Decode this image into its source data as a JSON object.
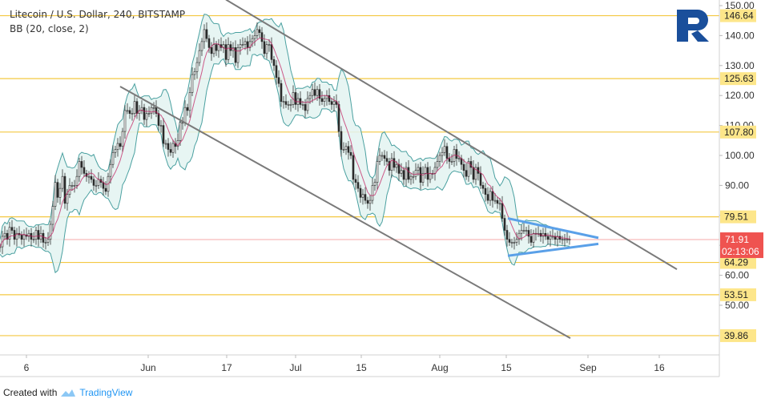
{
  "header": {
    "title": "Litecoin / U.S. Dollar, 240, BITSTAMP",
    "indicator": "BB (20, close, 2)"
  },
  "footer": {
    "created_with": "Created with",
    "brand": "TradingView"
  },
  "colors": {
    "level_line": "#f4c842",
    "level_label_bg": "#fde68a",
    "current_price_bg": "#ef5350",
    "band_fill": "#e3f3f1",
    "band_line": "#4aa0a0",
    "candle_up": "#2b2b2b",
    "candle_down": "#2b2b2b",
    "channel": "#7a7a7a",
    "triangle": "#5aa0e8",
    "ma_line": "#c2185b",
    "logo": "#1a4f9b"
  },
  "chart_data": {
    "type": "candlestick",
    "title": "Litecoin / U.S. Dollar, 240, BITSTAMP",
    "indicator": "BB (20, close, 2)",
    "y_axis": {
      "range": [
        35,
        153
      ],
      "ticks": [
        50,
        60,
        70,
        80,
        90,
        100,
        110,
        120,
        130,
        140,
        150
      ],
      "tick_labels": [
        "50.00",
        "60.00",
        "70.00",
        "80.00",
        "90.00",
        "100.00",
        "110.00",
        "120.00",
        "130.00",
        "140.00",
        "150.00"
      ]
    },
    "x_axis": {
      "ticks": [
        "6",
        "Jun",
        "17",
        "Jul",
        "15",
        "Aug",
        "15",
        "Sep",
        "16"
      ]
    },
    "levels": [
      146.64,
      125.63,
      107.8,
      79.51,
      64.29,
      53.51,
      39.86
    ],
    "level_labels": [
      "146.64",
      "125.63",
      "107.80",
      "79.51",
      "64.29",
      "53.51",
      "39.86"
    ],
    "current_price": "71.91",
    "countdown": "02:13:06",
    "closes": [
      [
        0,
        69.5
      ],
      [
        3,
        73
      ],
      [
        6,
        74
      ],
      [
        9,
        72
      ],
      [
        12,
        76
      ],
      [
        15,
        75
      ],
      [
        18,
        72
      ],
      [
        21,
        74
      ],
      [
        24,
        73.5
      ],
      [
        27,
        72
      ],
      [
        30,
        73.5
      ],
      [
        33,
        73
      ],
      [
        36,
        74
      ],
      [
        39,
        72
      ],
      [
        42,
        72
      ],
      [
        45,
        75
      ],
      [
        48,
        72
      ],
      [
        51,
        74
      ],
      [
        54,
        71
      ],
      [
        57,
        71
      ],
      [
        60,
        72
      ],
      [
        63,
        77
      ],
      [
        66,
        83
      ],
      [
        69,
        91
      ],
      [
        72,
        86
      ],
      [
        75,
        89
      ],
      [
        78,
        93
      ],
      [
        81,
        84
      ],
      [
        84,
        87
      ],
      [
        87,
        90
      ],
      [
        90,
        90
      ],
      [
        93,
        90
      ],
      [
        96,
        93
      ],
      [
        99,
        98
      ],
      [
        102,
        96
      ],
      [
        105,
        94
      ],
      [
        108,
        93
      ],
      [
        111,
        93
      ],
      [
        114,
        92
      ],
      [
        117,
        90
      ],
      [
        120,
        90
      ],
      [
        123,
        92
      ],
      [
        126,
        91
      ],
      [
        129,
        89
      ],
      [
        132,
        88
      ],
      [
        135,
        93
      ],
      [
        138,
        97
      ],
      [
        141,
        101
      ],
      [
        144,
        102
      ],
      [
        147,
        104
      ],
      [
        150,
        103
      ],
      [
        153,
        108
      ],
      [
        156,
        115
      ],
      [
        159,
        115
      ],
      [
        162,
        114
      ],
      [
        165,
        114
      ],
      [
        168,
        118
      ],
      [
        171,
        114
      ],
      [
        174,
        115
      ],
      [
        177,
        116
      ],
      [
        180,
        112
      ],
      [
        183,
        114
      ],
      [
        186,
        114
      ],
      [
        189,
        116
      ],
      [
        192,
        116
      ],
      [
        195,
        114
      ],
      [
        198,
        110
      ],
      [
        201,
        110
      ],
      [
        204,
        104
      ],
      [
        207,
        104
      ],
      [
        210,
        102
      ],
      [
        213,
        101
      ],
      [
        216,
        104
      ],
      [
        219,
        103
      ],
      [
        222,
        105
      ],
      [
        225,
        111
      ],
      [
        228,
        111
      ],
      [
        231,
        116
      ],
      [
        234,
        115
      ],
      [
        237,
        121
      ],
      [
        240,
        127
      ],
      [
        243,
        128
      ],
      [
        246,
        131
      ],
      [
        249,
        135
      ],
      [
        252,
        138
      ],
      [
        255,
        142
      ],
      [
        258,
        139
      ],
      [
        261,
        136
      ],
      [
        264,
        134
      ],
      [
        267,
        137
      ],
      [
        270,
        135
      ],
      [
        273,
        137
      ],
      [
        276,
        136
      ],
      [
        279,
        137
      ],
      [
        282,
        132
      ],
      [
        285,
        137
      ],
      [
        288,
        135
      ],
      [
        291,
        136
      ],
      [
        294,
        131
      ],
      [
        297,
        136
      ],
      [
        300,
        137
      ],
      [
        303,
        137
      ],
      [
        306,
        138
      ],
      [
        309,
        136
      ],
      [
        312,
        138
      ],
      [
        315,
        139
      ],
      [
        318,
        140
      ],
      [
        321,
        142
      ],
      [
        324,
        141
      ],
      [
        327,
        138
      ],
      [
        330,
        134
      ],
      [
        333,
        137
      ],
      [
        336,
        137
      ],
      [
        339,
        132
      ],
      [
        342,
        130
      ],
      [
        345,
        126
      ],
      [
        348,
        124
      ],
      [
        351,
        118
      ],
      [
        354,
        118
      ],
      [
        357,
        117
      ],
      [
        360,
        117
      ],
      [
        363,
        117
      ],
      [
        366,
        121
      ],
      [
        369,
        117
      ],
      [
        372,
        119
      ],
      [
        375,
        117
      ],
      [
        378,
        117
      ],
      [
        381,
        115
      ],
      [
        384,
        119
      ],
      [
        387,
        120
      ],
      [
        390,
        122
      ],
      [
        393,
        120
      ],
      [
        396,
        122
      ],
      [
        399,
        119
      ],
      [
        402,
        118
      ],
      [
        405,
        119
      ],
      [
        408,
        120
      ],
      [
        411,
        118
      ],
      [
        414,
        117
      ],
      [
        417,
        118
      ],
      [
        420,
        117
      ],
      [
        423,
        108
      ],
      [
        426,
        102
      ],
      [
        429,
        102
      ],
      [
        432,
        103
      ],
      [
        435,
        101
      ],
      [
        438,
        100
      ],
      [
        441,
        92
      ],
      [
        444,
        91
      ],
      [
        447,
        89
      ],
      [
        450,
        86
      ],
      [
        453,
        87
      ],
      [
        456,
        85
      ],
      [
        459,
        84
      ],
      [
        462,
        85
      ],
      [
        465,
        90
      ],
      [
        468,
        91
      ],
      [
        471,
        98
      ],
      [
        474,
        100
      ],
      [
        477,
        100
      ],
      [
        480,
        99
      ],
      [
        483,
        98
      ],
      [
        486,
        95
      ],
      [
        489,
        99
      ],
      [
        492,
        96
      ],
      [
        495,
        97
      ],
      [
        498,
        94
      ],
      [
        501,
        95
      ],
      [
        504,
        92
      ],
      [
        507,
        96
      ],
      [
        510,
        92
      ],
      [
        513,
        93
      ],
      [
        516,
        93
      ],
      [
        519,
        95
      ],
      [
        522,
        96
      ],
      [
        525,
        91
      ],
      [
        528,
        94
      ],
      [
        531,
        96
      ],
      [
        534,
        92
      ],
      [
        537,
        94
      ],
      [
        540,
        94
      ],
      [
        543,
        96
      ],
      [
        546,
        98
      ],
      [
        549,
        100
      ],
      [
        552,
        101
      ],
      [
        555,
        103
      ],
      [
        558,
        99
      ],
      [
        561,
        98
      ],
      [
        564,
        98
      ],
      [
        567,
        102
      ],
      [
        570,
        99
      ],
      [
        573,
        99
      ],
      [
        576,
        97
      ],
      [
        579,
        95
      ],
      [
        582,
        93
      ],
      [
        585,
        98
      ],
      [
        588,
        96
      ],
      [
        591,
        92
      ],
      [
        594,
        96
      ],
      [
        597,
        94
      ],
      [
        600,
        90
      ],
      [
        603,
        89
      ],
      [
        606,
        87
      ],
      [
        609,
        85
      ],
      [
        612,
        88
      ],
      [
        615,
        85
      ],
      [
        618,
        85
      ],
      [
        621,
        84
      ],
      [
        624,
        84
      ],
      [
        627,
        79
      ],
      [
        630,
        75
      ],
      [
        633,
        72
      ],
      [
        636,
        71
      ],
      [
        639,
        71
      ],
      [
        642,
        71
      ],
      [
        645,
        72
      ],
      [
        648,
        74
      ],
      [
        651,
        75
      ],
      [
        654,
        75
      ],
      [
        657,
        75
      ],
      [
        660,
        73
      ],
      [
        663,
        71
      ],
      [
        666,
        74
      ],
      [
        669,
        74
      ],
      [
        672,
        74
      ],
      [
        675,
        73
      ],
      [
        678,
        74
      ],
      [
        681,
        73
      ],
      [
        684,
        72
      ],
      [
        687,
        73
      ],
      [
        690,
        73
      ],
      [
        693,
        72
      ],
      [
        696,
        73
      ],
      [
        699,
        72
      ],
      [
        702,
        72
      ],
      [
        705,
        72
      ],
      [
        708,
        72
      ],
      [
        711,
        72
      ]
    ],
    "annotations": {
      "descending_channel": [
        {
          "from": [
            282,
            152
          ],
          "to": [
            845,
            62
          ]
        },
        {
          "from": [
            150,
            123
          ],
          "to": [
            712,
            39
          ]
        }
      ],
      "triangle": [
        {
          "from": [
            634,
            79
          ],
          "to": [
            747,
            72.5
          ]
        },
        {
          "from": [
            634,
            66.5
          ],
          "to": [
            747,
            70.5
          ]
        }
      ]
    }
  }
}
